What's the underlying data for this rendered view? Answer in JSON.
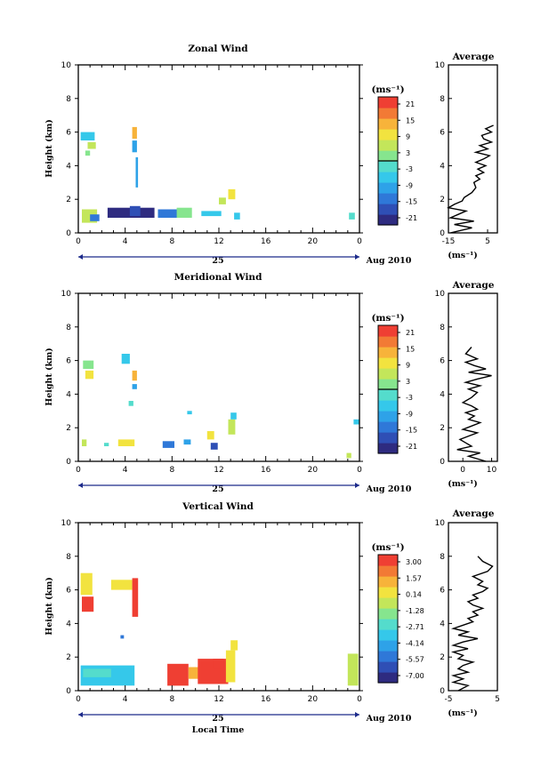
{
  "colors": {
    "scale": [
      "#2e2b80",
      "#2f4fb5",
      "#2f78d8",
      "#2ea2e8",
      "#35c8ea",
      "#54dccc",
      "#86e58e",
      "#c3e65a",
      "#f2e33f",
      "#f7b33a",
      "#f27a35",
      "#ef3f33"
    ],
    "axis": "#000000",
    "line": "#000000"
  },
  "shared": {
    "height_ticks": [
      "0",
      "2",
      "4",
      "6",
      "8",
      "10"
    ],
    "time_ticks": [
      "0",
      "4",
      "8",
      "12",
      "16",
      "20",
      "0"
    ],
    "date_day": "25",
    "date_label": "Aug 2010",
    "units_label": "(ms⁻¹)",
    "ylabel": "Height (km)",
    "average_title": "Average"
  },
  "chart_data": [
    {
      "type": "heatmap",
      "title": "Zonal Wind",
      "xlabel": "",
      "ylabel": "Height (km)",
      "xlim": [
        0,
        24
      ],
      "ylim": [
        0,
        10
      ],
      "colorbar": {
        "title": "(ms⁻¹)",
        "ticks": [
          "21",
          "15",
          "9",
          "3",
          "-3",
          "-9",
          "-15",
          "-21"
        ],
        "range": [
          -24,
          24
        ]
      },
      "patches": [
        {
          "x0": 0.3,
          "x1": 1.6,
          "y0": 0.6,
          "y1": 1.4,
          "v": 6
        },
        {
          "x0": 1.0,
          "x1": 1.8,
          "y0": 0.7,
          "y1": 1.1,
          "v": -14
        },
        {
          "x0": 2.5,
          "x1": 6.5,
          "y0": 0.9,
          "y1": 1.5,
          "v": -21
        },
        {
          "x0": 4.4,
          "x1": 5.3,
          "y0": 1.0,
          "y1": 1.6,
          "v": -18
        },
        {
          "x0": 6.8,
          "x1": 8.8,
          "y0": 0.9,
          "y1": 1.4,
          "v": -13
        },
        {
          "x0": 8.4,
          "x1": 9.7,
          "y0": 0.9,
          "y1": 1.5,
          "v": 2
        },
        {
          "x0": 10.5,
          "x1": 12.2,
          "y0": 1.0,
          "y1": 1.3,
          "v": -8
        },
        {
          "x0": 12.0,
          "x1": 12.6,
          "y0": 1.7,
          "y1": 2.1,
          "v": 5
        },
        {
          "x0": 12.8,
          "x1": 13.4,
          "y0": 2.0,
          "y1": 2.6,
          "v": 9
        },
        {
          "x0": 13.3,
          "x1": 13.8,
          "y0": 0.8,
          "y1": 1.2,
          "v": -6
        },
        {
          "x0": 0.2,
          "x1": 1.4,
          "y0": 5.5,
          "y1": 6.0,
          "v": -5
        },
        {
          "x0": 0.8,
          "x1": 1.5,
          "y0": 5.0,
          "y1": 5.4,
          "v": 4
        },
        {
          "x0": 0.6,
          "x1": 1.0,
          "y0": 4.6,
          "y1": 4.9,
          "v": 3
        },
        {
          "x0": 4.6,
          "x1": 5.0,
          "y0": 5.6,
          "y1": 6.3,
          "v": 13
        },
        {
          "x0": 4.6,
          "x1": 5.0,
          "y0": 4.8,
          "y1": 5.5,
          "v": -12
        },
        {
          "x0": 4.9,
          "x1": 5.1,
          "y0": 2.7,
          "y1": 4.5,
          "v": -9
        },
        {
          "x0": 23.1,
          "x1": 23.6,
          "y0": 0.8,
          "y1": 1.2,
          "v": -4
        }
      ],
      "average": {
        "xlim": [
          -15,
          10
        ],
        "xticks": [
          "-15",
          "5"
        ],
        "xlabel": "(ms⁻¹)",
        "height": [
          0.0,
          0.3,
          0.5,
          0.7,
          0.9,
          1.1,
          1.3,
          1.5,
          1.7,
          1.9,
          2.1,
          2.4,
          2.7,
          3.0,
          3.2,
          3.4,
          3.6,
          3.8,
          4.0,
          4.2,
          4.4,
          4.6,
          4.8,
          5.0,
          5.2,
          5.4,
          5.6,
          5.8,
          6.0,
          6.2,
          6.4
        ],
        "value": [
          -14,
          -3,
          -12,
          -2,
          -14,
          -10,
          -6,
          -15,
          -12,
          -8,
          -7,
          -3,
          -1,
          -2,
          1,
          -1,
          3,
          0,
          4,
          -1,
          3,
          6,
          -1,
          5,
          1,
          7,
          3,
          2,
          7,
          4,
          8
        ]
      }
    },
    {
      "type": "heatmap",
      "title": "Meridional Wind",
      "xlabel": "",
      "ylabel": "Height (km)",
      "xlim": [
        0,
        24
      ],
      "ylim": [
        0,
        10
      ],
      "colorbar": {
        "title": "(ms⁻¹)",
        "ticks": [
          "21",
          "15",
          "9",
          "3",
          "-3",
          "-9",
          "-15",
          "-21"
        ],
        "range": [
          -24,
          24
        ]
      },
      "patches": [
        {
          "x0": 0.3,
          "x1": 0.7,
          "y0": 0.9,
          "y1": 1.3,
          "v": 7
        },
        {
          "x0": 2.2,
          "x1": 2.6,
          "y0": 0.9,
          "y1": 1.1,
          "v": -3
        },
        {
          "x0": 3.4,
          "x1": 4.8,
          "y0": 0.9,
          "y1": 1.3,
          "v": 10
        },
        {
          "x0": 7.2,
          "x1": 8.2,
          "y0": 0.8,
          "y1": 1.2,
          "v": -16
        },
        {
          "x0": 9.0,
          "x1": 9.6,
          "y0": 1.0,
          "y1": 1.3,
          "v": -12
        },
        {
          "x0": 11.3,
          "x1": 11.9,
          "y0": 0.7,
          "y1": 1.1,
          "v": -19
        },
        {
          "x0": 11.0,
          "x1": 11.6,
          "y0": 1.3,
          "y1": 1.8,
          "v": 9
        },
        {
          "x0": 12.8,
          "x1": 13.4,
          "y0": 1.6,
          "y1": 2.5,
          "v": 4
        },
        {
          "x0": 13.0,
          "x1": 13.5,
          "y0": 2.5,
          "y1": 2.9,
          "v": -8
        },
        {
          "x0": 0.4,
          "x1": 1.3,
          "y0": 5.5,
          "y1": 6.0,
          "v": 2
        },
        {
          "x0": 0.6,
          "x1": 1.3,
          "y0": 4.9,
          "y1": 5.4,
          "v": 8
        },
        {
          "x0": 3.7,
          "x1": 4.4,
          "y0": 5.8,
          "y1": 6.4,
          "v": -6
        },
        {
          "x0": 4.6,
          "x1": 5.0,
          "y0": 4.8,
          "y1": 5.4,
          "v": 12
        },
        {
          "x0": 4.6,
          "x1": 5.0,
          "y0": 4.3,
          "y1": 4.6,
          "v": -10
        },
        {
          "x0": 4.3,
          "x1": 4.7,
          "y0": 3.3,
          "y1": 3.6,
          "v": -4
        },
        {
          "x0": 9.3,
          "x1": 9.7,
          "y0": 2.8,
          "y1": 3.0,
          "v": -7
        },
        {
          "x0": 23.5,
          "x1": 24.0,
          "y0": 2.2,
          "y1": 2.5,
          "v": -6
        },
        {
          "x0": 22.9,
          "x1": 23.3,
          "y0": 0.2,
          "y1": 0.5,
          "v": 6
        }
      ],
      "average": {
        "xlim": [
          -5,
          12
        ],
        "xticks": [
          "0",
          "10"
        ],
        "xlabel": "(ms⁻¹)",
        "height": [
          0.0,
          0.3,
          0.5,
          0.7,
          0.9,
          1.1,
          1.3,
          1.5,
          1.7,
          1.9,
          2.1,
          2.3,
          2.5,
          2.7,
          2.9,
          3.1,
          3.3,
          3.5,
          3.8,
          4.1,
          4.3,
          4.5,
          4.7,
          4.9,
          5.1,
          5.3,
          5.5,
          5.7,
          5.9,
          6.1,
          6.4,
          6.8
        ],
        "value": [
          8,
          2,
          6,
          -2,
          3,
          1,
          -1,
          2,
          5,
          0,
          3,
          6,
          2,
          4,
          1,
          5,
          3,
          0,
          3,
          5,
          2,
          6,
          1,
          5,
          10,
          2,
          8,
          4,
          1,
          5,
          1,
          3
        ]
      }
    },
    {
      "type": "heatmap",
      "title": "Vertical Wind",
      "xlabel": "Local Time",
      "ylabel": "Height (km)",
      "xlim": [
        0,
        24
      ],
      "ylim": [
        0,
        10
      ],
      "colorbar": {
        "title": "(ms⁻¹)",
        "ticks": [
          "3.00",
          "1.57",
          "0.14",
          "-1.28",
          "-2.71",
          "-4.14",
          "-5.57",
          "-7.00"
        ],
        "range": [
          -7.7,
          3.7
        ]
      },
      "patches": [
        {
          "x0": 0.2,
          "x1": 4.8,
          "y0": 0.3,
          "y1": 1.5,
          "v": -3.3
        },
        {
          "x0": 0.4,
          "x1": 2.8,
          "y0": 0.8,
          "y1": 1.3,
          "v": -2.6
        },
        {
          "x0": 7.6,
          "x1": 9.4,
          "y0": 0.3,
          "y1": 1.6,
          "v": 3.4
        },
        {
          "x0": 9.4,
          "x1": 10.6,
          "y0": 0.7,
          "y1": 1.4,
          "v": 1.6
        },
        {
          "x0": 10.2,
          "x1": 12.8,
          "y0": 0.4,
          "y1": 1.9,
          "v": 3.2
        },
        {
          "x0": 11.5,
          "x1": 12.4,
          "y0": 1.3,
          "y1": 1.9,
          "v": 2.9
        },
        {
          "x0": 12.6,
          "x1": 13.4,
          "y0": 0.5,
          "y1": 2.4,
          "v": 0.8
        },
        {
          "x0": 13.0,
          "x1": 13.6,
          "y0": 2.4,
          "y1": 3.0,
          "v": 0.4
        },
        {
          "x0": 0.3,
          "x1": 1.3,
          "y0": 4.7,
          "y1": 5.6,
          "v": 3.5
        },
        {
          "x0": 0.2,
          "x1": 1.2,
          "y0": 5.7,
          "y1": 7.0,
          "v": 0.8
        },
        {
          "x0": 2.8,
          "x1": 4.6,
          "y0": 6.0,
          "y1": 6.6,
          "v": 0.6
        },
        {
          "x0": 4.6,
          "x1": 5.1,
          "y0": 4.4,
          "y1": 6.7,
          "v": 3.3
        },
        {
          "x0": 3.6,
          "x1": 3.9,
          "y0": 3.1,
          "y1": 3.3,
          "v": -5.8
        },
        {
          "x0": 23.0,
          "x1": 23.9,
          "y0": 0.3,
          "y1": 2.2,
          "v": -1.0
        }
      ],
      "average": {
        "xlim": [
          -5,
          5
        ],
        "xticks": [
          "-5",
          "5"
        ],
        "xlabel": "(ms⁻¹)",
        "height": [
          0.0,
          0.3,
          0.5,
          0.7,
          0.9,
          1.1,
          1.3,
          1.5,
          1.7,
          1.9,
          2.1,
          2.3,
          2.5,
          2.7,
          2.9,
          3.1,
          3.3,
          3.5,
          3.7,
          3.9,
          4.1,
          4.3,
          4.5,
          4.7,
          4.9,
          5.1,
          5.3,
          5.5,
          5.7,
          5.9,
          6.1,
          6.3,
          6.5,
          6.8,
          7.1,
          7.4,
          7.7,
          8.0
        ],
        "value": [
          -3,
          -1,
          -4,
          -2,
          -4,
          -1,
          -3,
          -2,
          0,
          -3,
          -2,
          -4,
          -1,
          -4,
          -2,
          1,
          -3,
          -1,
          -4,
          -2,
          0,
          -1,
          1,
          0,
          2,
          0,
          -1,
          1,
          0,
          2,
          3,
          1,
          2,
          0,
          3,
          4,
          2,
          1
        ]
      }
    }
  ]
}
